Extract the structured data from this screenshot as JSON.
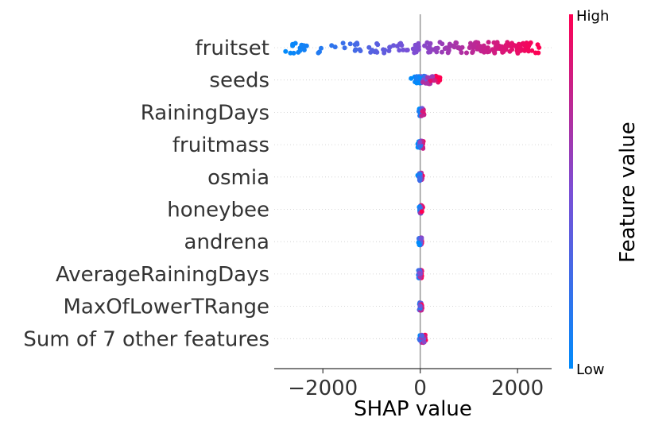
{
  "chart_data": {
    "type": "scatter",
    "subtype": "shap-beeswarm",
    "title": "",
    "xlabel": "SHAP value",
    "xlim": [
      -3000,
      2700
    ],
    "x_ticks": [
      -2000,
      0,
      2000
    ],
    "x_tick_labels": [
      "−2000",
      "0",
      "2000"
    ],
    "features": [
      "fruitset",
      "seeds",
      "RainingDays",
      "fruitmass",
      "osmia",
      "honeybee",
      "andrena",
      "AverageRainingDays",
      "MaxOfLowerTRange",
      "Sum of 7 other features"
    ],
    "colorbar": {
      "title": "Feature value",
      "high_label": "High",
      "low_label": "Low",
      "low_color": "#008bfb",
      "high_color": "#ff0052"
    },
    "grid": "dotted-horizontal",
    "zero_line": true,
    "spread": [
      {
        "min": -2800,
        "max": 2450
      },
      {
        "min": -300,
        "max": 500
      },
      {
        "min": -50,
        "max": 100
      },
      {
        "min": -60,
        "max": 80
      },
      {
        "min": -60,
        "max": 70
      },
      {
        "min": -40,
        "max": 60
      },
      {
        "min": -50,
        "max": 60
      },
      {
        "min": -60,
        "max": 50
      },
      {
        "min": -40,
        "max": 50
      },
      {
        "min": -60,
        "max": 150
      }
    ]
  }
}
